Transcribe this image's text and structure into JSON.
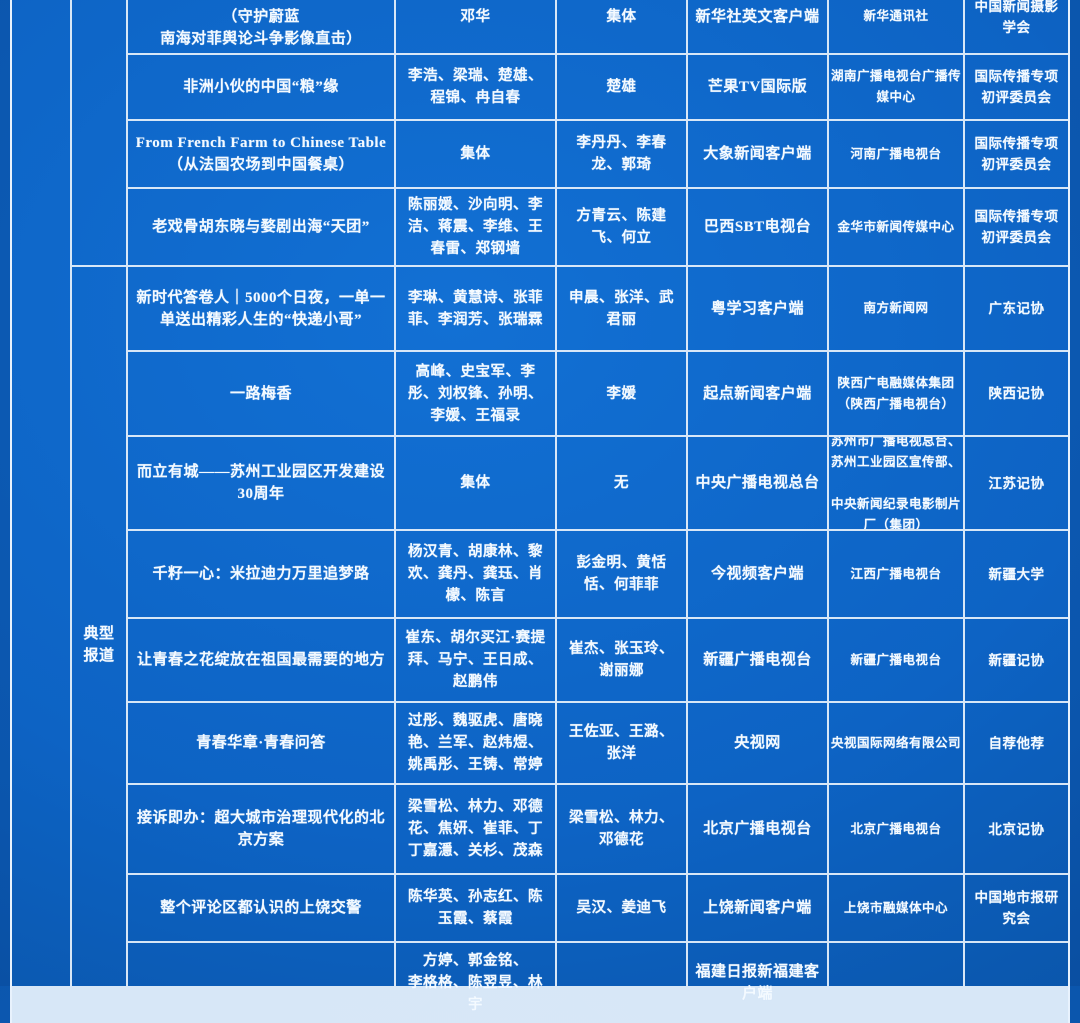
{
  "colors": {
    "cell_blue": "#0d63c4",
    "grid_line": "#e9f3fd",
    "text": "#f4faff",
    "page_background": "#0b55ac"
  },
  "table": {
    "categories": {
      "top": "",
      "typical": "典型报道"
    },
    "rows": [
      {
        "title": "Sea\n（守护蔚蓝\n南海对菲舆论斗争影像直击）",
        "authors": "邓华",
        "editors": "集体",
        "platform": "新华社英文客户端",
        "organization": "新华通讯社",
        "recommender": "中国新闻摄影学会"
      },
      {
        "title": "非洲小伙的中国“粮”缘",
        "authors": "李浩、梁瑞、楚雄、程锦、冉自春",
        "editors": "楚雄",
        "platform": "芒果TV国际版",
        "organization": "湖南广播电视台广播传媒中心",
        "recommender": "国际传播专项初评委员会"
      },
      {
        "title": "From French Farm to Chinese Table（从法国农场到中国餐桌）",
        "authors": "集体",
        "editors": "李丹丹、李春龙、郭琦",
        "platform": "大象新闻客户端",
        "organization": "河南广播电视台",
        "recommender": "国际传播专项初评委员会"
      },
      {
        "title": "老戏骨胡东晓与婺剧出海“天团”",
        "authors": "陈丽媛、沙向明、李洁、蒋震、李维、王春雷、郑钢墙",
        "editors": "方青云、陈建飞、何立",
        "platform": "巴西SBT电视台",
        "organization": "金华市新闻传媒中心",
        "recommender": "国际传播专项初评委员会"
      },
      {
        "title": "新时代答卷人｜5000个日夜，一单一单送出精彩人生的“快递小哥”",
        "authors": "李琳、黄慧诗、张菲菲、李润芳、张瑞霖",
        "editors": "申晨、张洋、武君丽",
        "platform": "粤学习客户端",
        "organization": "南方新闻网",
        "recommender": "广东记协"
      },
      {
        "title": "一路梅香",
        "authors": "高峰、史宝军、李彤、刘权锋、孙明、李媛、王福录",
        "editors": "李媛",
        "platform": "起点新闻客户端",
        "organization": "陕西广电融媒体集团（陕西广播电视台）",
        "recommender": "陕西记协"
      },
      {
        "title": "而立有城——苏州工业园区开发建设30周年",
        "authors": "集体",
        "editors": "无",
        "platform": "中央广播电视总台",
        "organization": "苏州市广播电视总台、苏州工业园区宣传部、\n\n中央新闻纪录电影制片厂（集团）",
        "recommender": "江苏记协"
      },
      {
        "title": "千籽一心：米拉迪力万里追梦路",
        "authors": "杨汉青、胡康林、黎欢、龚丹、龚珏、肖檬、陈言",
        "editors": "彭金明、黄恬恬、何菲菲",
        "platform": "今视频客户端",
        "organization": "江西广播电视台",
        "recommender": "新疆大学"
      },
      {
        "title": "让青春之花绽放在祖国最需要的地方",
        "authors": "崔东、胡尔买江·赛提拜、马宁、王日成、赵鹏伟",
        "editors": "崔杰、张玉玲、谢丽娜",
        "platform": "新疆广播电视台",
        "organization": "新疆广播电视台",
        "recommender": "新疆记协"
      },
      {
        "title": "青春华章·青春问答",
        "authors": "过彤、魏驱虎、唐晓艳、兰军、赵炜煜、姚禹彤、王铸、常婷",
        "editors": "王佐亚、王潞、张洋",
        "platform": "央视网",
        "organization": "央视国际网络有限公司",
        "recommender": "自荐他荐"
      },
      {
        "title": "接诉即办：超大城市治理现代化的北京方案",
        "authors": "梁雪松、林力、邓德花、焦妍、崔菲、丁丁嘉濦、关杉、茂森",
        "editors": "梁雪松、林力、邓德花",
        "platform": "北京广播电视台",
        "organization": "北京广播电视台",
        "recommender": "北京记协"
      },
      {
        "title": "整个评论区都认识的上饶交警",
        "authors": "陈华英、孙志红、陈玉霞、蔡霞",
        "editors": "吴汉、姜迪飞",
        "platform": "上饶新闻客户端",
        "organization": "上饶市融媒体中心",
        "recommender": "中国地市报研究会"
      },
      {
        "title": "",
        "authors": "方婷、郭金铭、\n李格格、陈翌昱、林宇",
        "editors": "",
        "platform": "福建日报新福建客户端",
        "organization": "",
        "recommender": ""
      }
    ]
  }
}
